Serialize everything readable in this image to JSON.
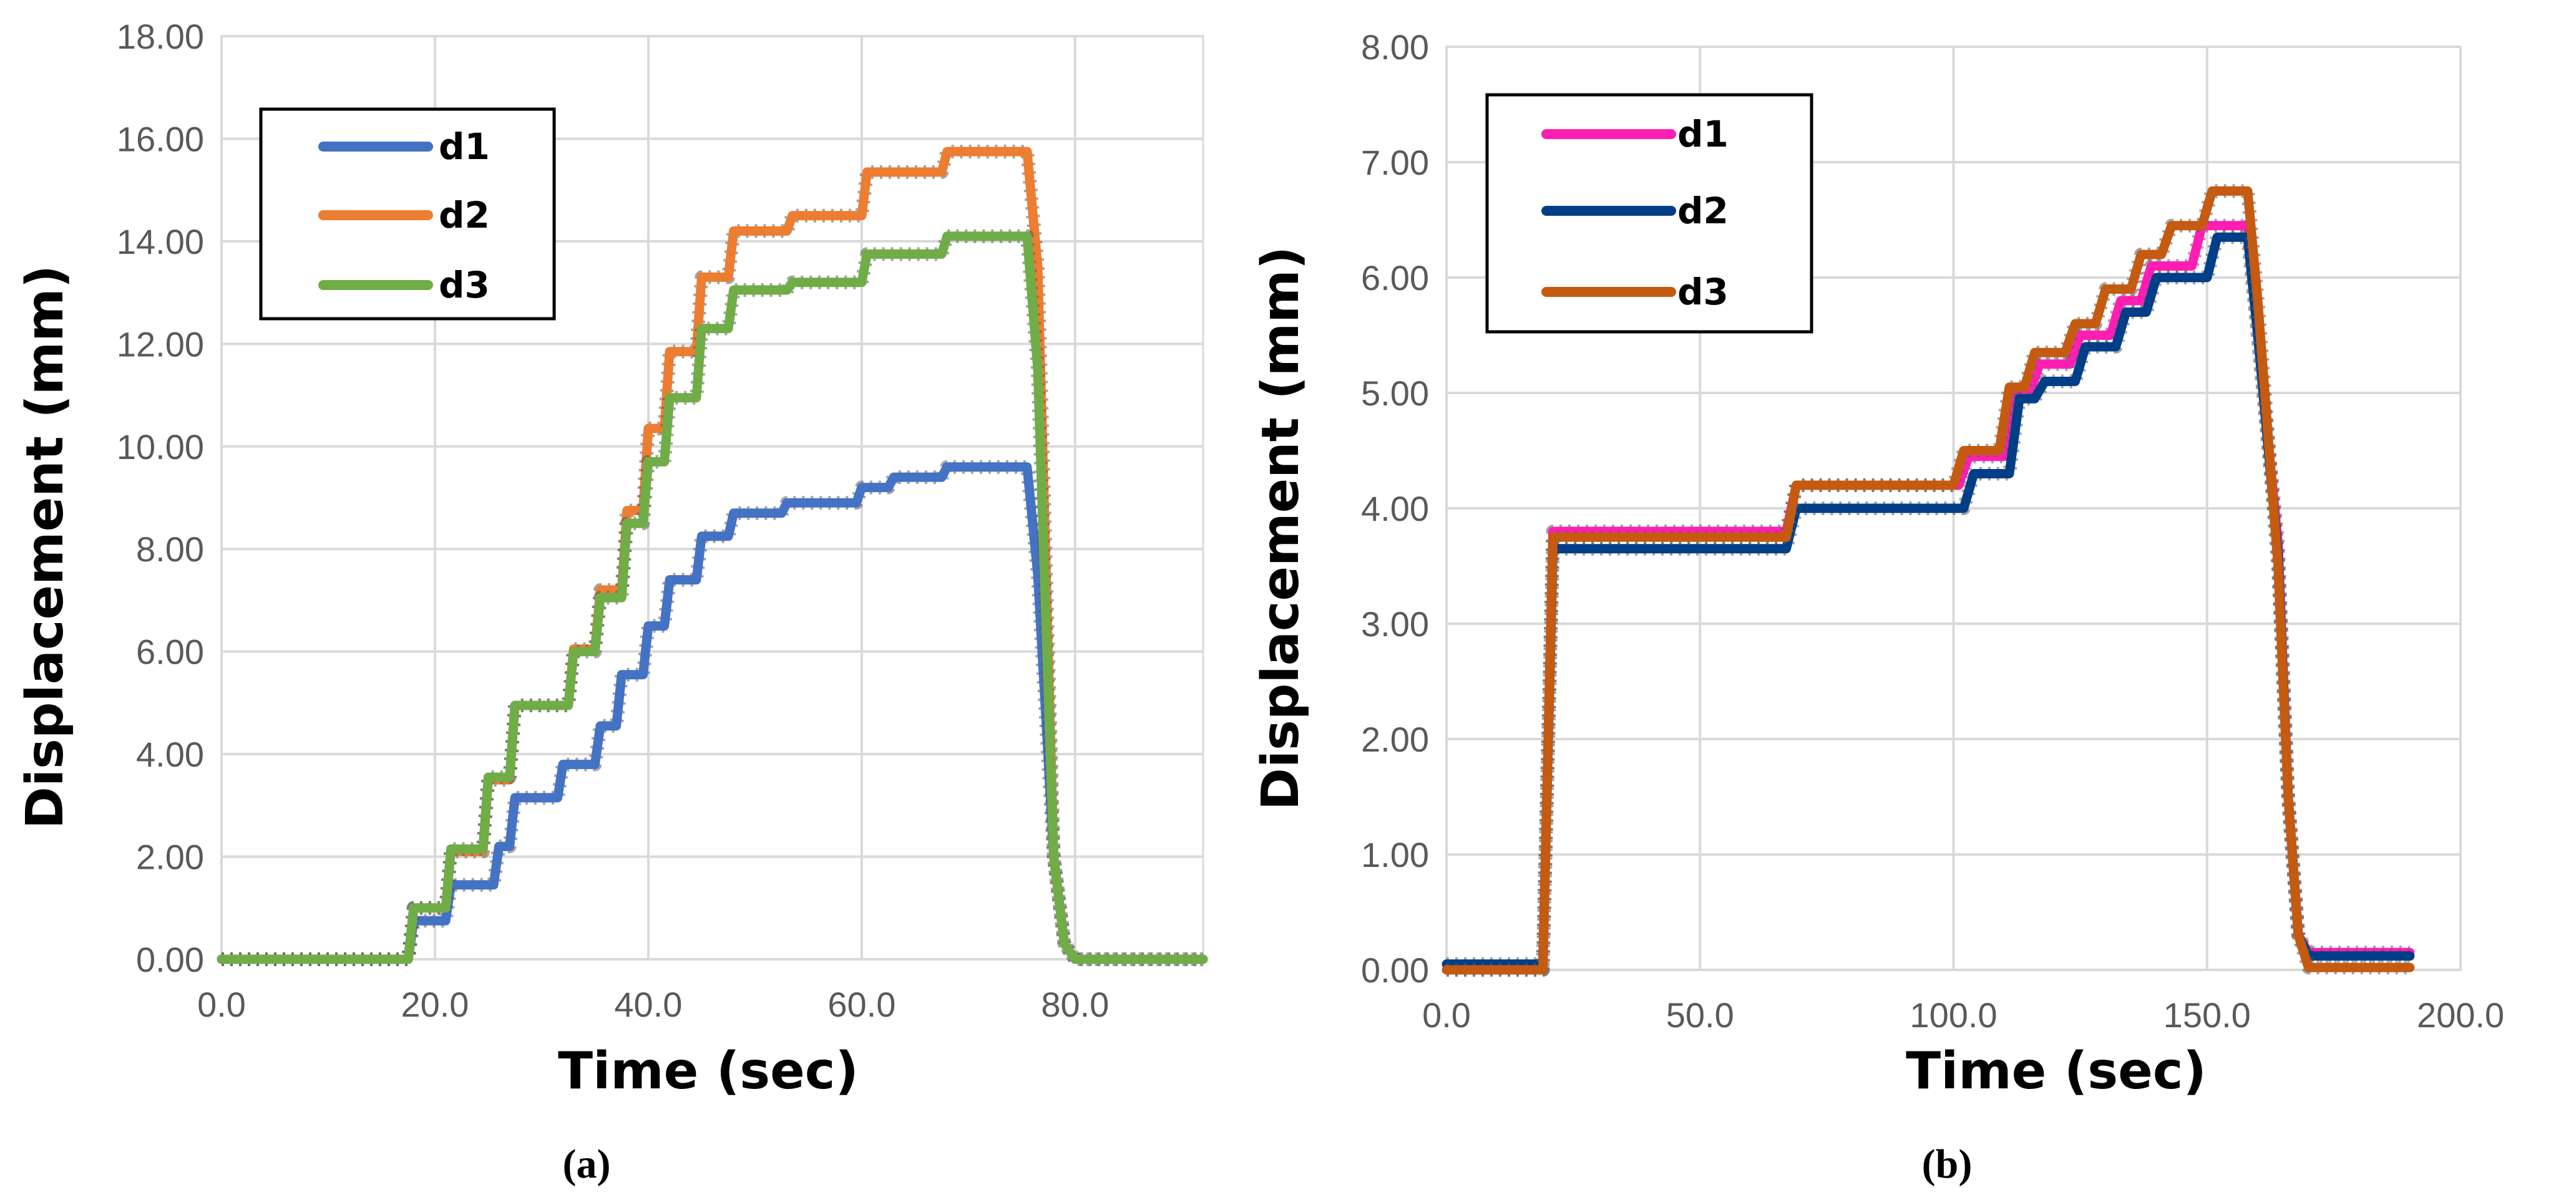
{
  "chart_data": [
    {
      "type": "line",
      "panel_label": "(a)",
      "title": "",
      "xlabel": "Time (sec)",
      "ylabel": "Displacement (mm)",
      "xlim": [
        0,
        92
      ],
      "ylim": [
        0,
        18
      ],
      "xticks": [
        0,
        20,
        40,
        60,
        80
      ],
      "xtick_labels": [
        "0.0",
        "20.0",
        "40.0",
        "60.0",
        "80.0"
      ],
      "yticks": [
        0,
        2,
        4,
        6,
        8,
        10,
        12,
        14,
        16,
        18
      ],
      "ytick_labels": [
        "0.00",
        "2.00",
        "4.00",
        "6.00",
        "8.00",
        "10.00",
        "12.00",
        "14.00",
        "16.00",
        "18.00"
      ],
      "grid": true,
      "legend_position": "top-left",
      "series": [
        {
          "name": "d1",
          "color": "#4472C4",
          "x": [
            0,
            17.5,
            18,
            21,
            21.5,
            25.5,
            26,
            27,
            27.5,
            31.5,
            32,
            35,
            35.5,
            37,
            37.5,
            39.5,
            40,
            41.5,
            42,
            44.5,
            45,
            47.5,
            48,
            52.5,
            53,
            59.5,
            60,
            62.5,
            63,
            67.5,
            68,
            75.5,
            76.5,
            78,
            79,
            80,
            92
          ],
          "y": [
            0,
            0,
            0.75,
            0.75,
            1.45,
            1.45,
            2.2,
            2.2,
            3.15,
            3.15,
            3.8,
            3.8,
            4.55,
            4.55,
            5.55,
            5.55,
            6.5,
            6.5,
            7.4,
            7.4,
            8.25,
            8.25,
            8.7,
            8.7,
            8.9,
            8.9,
            9.2,
            9.2,
            9.4,
            9.4,
            9.6,
            9.6,
            7.5,
            2.0,
            0.3,
            0,
            0
          ]
        },
        {
          "name": "d2",
          "color": "#ED7D31",
          "x": [
            0,
            17.5,
            18,
            21,
            21.5,
            24.5,
            25,
            27,
            27.5,
            32.5,
            33,
            35,
            35.5,
            37.5,
            38,
            39.5,
            40,
            41.5,
            42,
            44.5,
            45,
            47.5,
            48,
            53,
            53.5,
            60,
            60.5,
            67.5,
            68,
            75.5,
            76.5,
            78,
            79,
            80,
            92
          ],
          "y": [
            0,
            0,
            1.0,
            1.0,
            2.1,
            2.1,
            3.5,
            3.5,
            4.95,
            4.95,
            6.05,
            6.05,
            7.2,
            7.2,
            8.75,
            8.75,
            10.35,
            10.35,
            11.85,
            11.85,
            13.3,
            13.3,
            14.2,
            14.2,
            14.5,
            14.5,
            15.35,
            15.35,
            15.75,
            15.75,
            13.5,
            2.0,
            0.3,
            0,
            0
          ]
        },
        {
          "name": "d3",
          "color": "#70AD47",
          "x": [
            0,
            17.5,
            18,
            21,
            21.5,
            24.5,
            25,
            27,
            27.5,
            32.5,
            33,
            35,
            35.5,
            37.5,
            38,
            39.5,
            40,
            41.5,
            42,
            44.5,
            45,
            47.5,
            48,
            53,
            53.5,
            60,
            60.5,
            67.5,
            68,
            75.5,
            76.5,
            78,
            79,
            80,
            92
          ],
          "y": [
            0,
            0,
            1.0,
            1.0,
            2.15,
            2.15,
            3.55,
            3.55,
            4.95,
            4.95,
            6.0,
            6.0,
            7.05,
            7.05,
            8.5,
            8.5,
            9.7,
            9.7,
            10.95,
            10.95,
            12.3,
            12.3,
            13.05,
            13.05,
            13.2,
            13.2,
            13.75,
            13.75,
            14.1,
            14.1,
            11.5,
            2.0,
            0.3,
            0,
            0
          ]
        }
      ]
    },
    {
      "type": "line",
      "panel_label": "(b)",
      "title": "",
      "xlabel": "Time (sec)",
      "ylabel": "Displacement (mm)",
      "xlim": [
        0,
        200
      ],
      "ylim": [
        0,
        8
      ],
      "xticks": [
        0,
        50,
        100,
        150,
        200
      ],
      "xtick_labels": [
        "0.0",
        "50.0",
        "100.0",
        "150.0",
        "200.0"
      ],
      "yticks": [
        0,
        1,
        2,
        3,
        4,
        5,
        6,
        7,
        8
      ],
      "ytick_labels": [
        "0.00",
        "1.00",
        "2.00",
        "3.00",
        "4.00",
        "5.00",
        "6.00",
        "7.00",
        "8.00"
      ],
      "grid": true,
      "legend_position": "top-left",
      "series": [
        {
          "name": "d1",
          "color": "#FF1EB4",
          "x": [
            0,
            19,
            21,
            67,
            69,
            101,
            103,
            110,
            112,
            115,
            117,
            123,
            125,
            131,
            133,
            137,
            139,
            147,
            149,
            158,
            160,
            164,
            166,
            168,
            170,
            190
          ],
          "y": [
            0,
            0,
            3.8,
            3.8,
            4.2,
            4.2,
            4.45,
            4.45,
            5.0,
            5.0,
            5.25,
            5.25,
            5.5,
            5.5,
            5.8,
            5.8,
            6.1,
            6.1,
            6.45,
            6.45,
            5.5,
            3.7,
            1.5,
            0.3,
            0.15,
            0.15
          ]
        },
        {
          "name": "d2",
          "color": "#003F87",
          "x": [
            0,
            19,
            21,
            67,
            69,
            102,
            104,
            111,
            113,
            116,
            118,
            124,
            126,
            132,
            134,
            138,
            140,
            150,
            152,
            158,
            160,
            164,
            166,
            168,
            170,
            190
          ],
          "y": [
            0.05,
            0.05,
            3.65,
            3.65,
            4.0,
            4.0,
            4.3,
            4.3,
            4.95,
            4.95,
            5.1,
            5.1,
            5.4,
            5.4,
            5.7,
            5.7,
            6.0,
            6.0,
            6.35,
            6.35,
            5.5,
            3.6,
            1.5,
            0.3,
            0.12,
            0.12
          ]
        },
        {
          "name": "d3",
          "color": "#C55A11",
          "x": [
            0,
            19,
            21,
            67,
            69,
            100,
            102,
            109,
            111,
            114,
            116,
            122,
            124,
            128,
            130,
            135,
            137,
            141,
            143,
            149,
            151,
            158,
            160,
            164,
            166,
            168,
            170,
            190
          ],
          "y": [
            0,
            0,
            3.75,
            3.75,
            4.2,
            4.2,
            4.5,
            4.5,
            5.05,
            5.05,
            5.35,
            5.35,
            5.6,
            5.6,
            5.9,
            5.9,
            6.2,
            6.2,
            6.45,
            6.45,
            6.75,
            6.75,
            5.8,
            3.5,
            1.5,
            0.3,
            0.02,
            0.02
          ]
        }
      ]
    }
  ]
}
